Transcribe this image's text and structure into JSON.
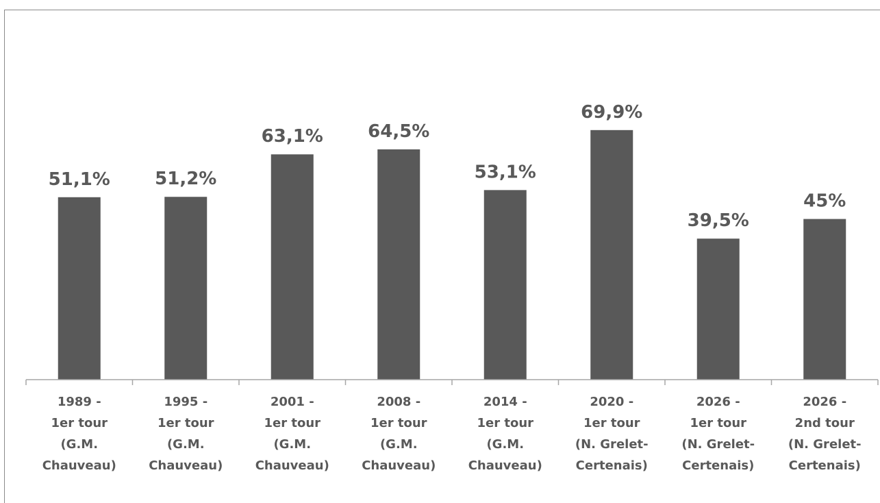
{
  "chart_data": {
    "type": "bar",
    "categories": [
      [
        "1989 -",
        "1er tour",
        "(G.M.",
        "Chauveau)"
      ],
      [
        "1995 -",
        "1er tour",
        "(G.M.",
        "Chauveau)"
      ],
      [
        "2001 -",
        "1er tour",
        "(G.M.",
        "Chauveau)"
      ],
      [
        "2008 -",
        "1er tour",
        "(G.M.",
        "Chauveau)"
      ],
      [
        "2014 -",
        "1er tour",
        "(G.M.",
        "Chauveau)"
      ],
      [
        "2020 -",
        "1er tour",
        "(N. Grelet-",
        "Certenais)"
      ],
      [
        "2026 -",
        "1er tour",
        "(N. Grelet-",
        "Certenais)"
      ],
      [
        "2026 -",
        "2nd tour",
        "(N. Grelet-",
        "Certenais)"
      ]
    ],
    "values": [
      51.1,
      51.2,
      63.1,
      64.5,
      53.1,
      69.9,
      39.5,
      45
    ],
    "data_labels": [
      "51,1%",
      "51,2%",
      "63,1%",
      "64,5%",
      "53,1%",
      "69,9%",
      "39,5%",
      "45%"
    ],
    "ylim": [
      0,
      100
    ],
    "grid": false,
    "bar_color": "#595959",
    "axis_color": "#a6a6a6",
    "text_color": "#595959"
  }
}
